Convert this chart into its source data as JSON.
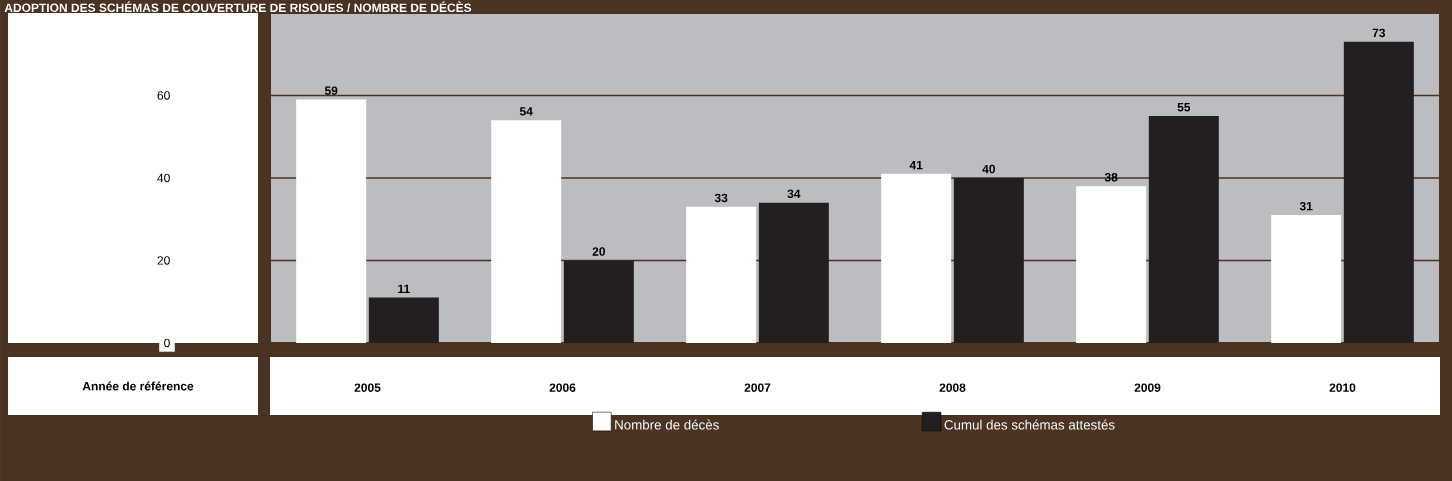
{
  "chart_data": {
    "type": "bar",
    "title": "ADOPTION DES SCHÉMAS DE COUVERTURE DE RISQUES / NOMBRE DE DÉCÈS",
    "xlabel": "Année de référence",
    "categories": [
      "2005",
      "2006",
      "2007",
      "2008",
      "2009",
      "2010"
    ],
    "series": [
      {
        "name": "Nombre de décès",
        "color": "#ffffff",
        "values": [
          59,
          54,
          33,
          41,
          38,
          31
        ]
      },
      {
        "name": "Cumul des schémas attestés",
        "color": "#231f20",
        "values": [
          11,
          20,
          34,
          40,
          55,
          73
        ]
      }
    ],
    "ylim": [
      0,
      80
    ],
    "yticks": [
      0,
      20,
      40,
      60
    ],
    "grid": "y",
    "legend": "bottom",
    "data_labels": true
  }
}
